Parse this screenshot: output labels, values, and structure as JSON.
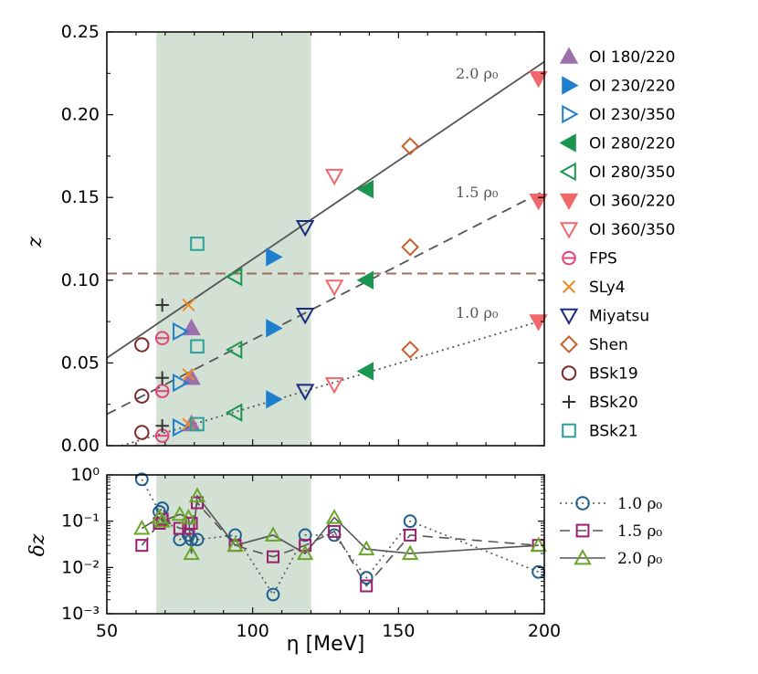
{
  "chart_data": [
    {
      "type": "scatter",
      "panel": "top",
      "xlabel": "",
      "ylabel": "z",
      "xlim": [
        50,
        200
      ],
      "ylim": [
        0,
        0.25
      ],
      "yticks": [
        "0.00",
        "0.05",
        "0.10",
        "0.15",
        "0.20",
        "0.25"
      ],
      "shaded_band": [
        67,
        120
      ],
      "hline": 0.104,
      "fit_lines": [
        {
          "name": "2.0 ρ0",
          "label": "2.0 ρ₀",
          "style": "solid",
          "points": [
            [
              50,
              0.053
            ],
            [
              200,
              0.232
            ]
          ]
        },
        {
          "name": "1.5 ρ0",
          "label": "1.5 ρ₀",
          "style": "dashed",
          "points": [
            [
              50,
              0.019
            ],
            [
              200,
              0.154
            ]
          ]
        },
        {
          "name": "1.0 ρ0",
          "label": "1.0 ρ₀",
          "style": "dotted",
          "points": [
            [
              55,
              0.0
            ],
            [
              200,
              0.076
            ]
          ]
        }
      ],
      "series": [
        {
          "name": "OI 180/220",
          "label": "OI 180/220",
          "marker": "triangle-up",
          "filled": true,
          "color": "#9c6fad",
          "points": [
            [
              79,
              0.071
            ],
            [
              79,
              0.041
            ],
            [
              79,
              0.013
            ]
          ]
        },
        {
          "name": "OI 230/220",
          "label": "OI 230/220",
          "marker": "triangle-right",
          "filled": true,
          "color": "#1f7fcf",
          "points": [
            [
              107,
              0.114
            ],
            [
              107,
              0.071
            ],
            [
              107,
              0.028
            ]
          ]
        },
        {
          "name": "OI 230/350",
          "label": "OI 230/350",
          "marker": "triangle-right",
          "filled": false,
          "color": "#1f7fcf",
          "points": [
            [
              75,
              0.069
            ],
            [
              75,
              0.038
            ],
            [
              75,
              0.011
            ]
          ]
        },
        {
          "name": "OI 280/220",
          "label": "OI 280/220",
          "marker": "triangle-left",
          "filled": true,
          "color": "#1a9650",
          "points": [
            [
              139,
              0.155
            ],
            [
              139,
              0.1
            ],
            [
              139,
              0.045
            ]
          ]
        },
        {
          "name": "OI 280/350",
          "label": "OI 280/350",
          "marker": "triangle-left",
          "filled": false,
          "color": "#1a9650",
          "points": [
            [
              94,
              0.102
            ],
            [
              94,
              0.058
            ],
            [
              94,
              0.02
            ]
          ]
        },
        {
          "name": "OI 360/220",
          "label": "OI 360/220",
          "marker": "triangle-down",
          "filled": true,
          "color": "#f0686c",
          "points": [
            [
              198,
              0.222
            ],
            [
              198,
              0.148
            ],
            [
              198,
              0.075
            ]
          ]
        },
        {
          "name": "OI 360/350",
          "label": "OI 360/350",
          "marker": "triangle-down",
          "filled": false,
          "color": "#f0686c",
          "points": [
            [
              128,
              0.163
            ],
            [
              128,
              0.096
            ],
            [
              128,
              0.037
            ]
          ]
        },
        {
          "name": "FPS",
          "label": "FPS",
          "marker": "circle-bar",
          "filled": false,
          "color": "#e0457b",
          "points": [
            [
              69,
              0.065
            ],
            [
              69,
              0.033
            ],
            [
              69,
              0.006
            ]
          ]
        },
        {
          "name": "SLy4",
          "label": "SLy4",
          "marker": "x",
          "filled": false,
          "color": "#f08a24",
          "points": [
            [
              78,
              0.085
            ],
            [
              78,
              0.043
            ],
            [
              78,
              0.013
            ]
          ]
        },
        {
          "name": "Miyatsu",
          "label": "Miyatsu",
          "marker": "triangle-down",
          "filled": false,
          "color": "#1a2a80",
          "points": [
            [
              118,
              0.132
            ],
            [
              118,
              0.079
            ],
            [
              118,
              0.033
            ]
          ]
        },
        {
          "name": "Shen",
          "label": "Shen",
          "marker": "diamond",
          "filled": false,
          "color": "#c8602c",
          "points": [
            [
              154,
              0.181
            ],
            [
              154,
              0.12
            ],
            [
              154,
              0.058
            ]
          ]
        },
        {
          "name": "BSk19",
          "label": "BSk19",
          "marker": "circle",
          "filled": false,
          "color": "#7a2a2a",
          "points": [
            [
              62,
              0.061
            ],
            [
              62,
              0.03
            ],
            [
              62,
              0.008
            ]
          ]
        },
        {
          "name": "BSk20",
          "label": "BSk20",
          "marker": "plus",
          "filled": false,
          "color": "#333333",
          "points": [
            [
              69,
              0.085
            ],
            [
              69,
              0.041
            ],
            [
              69,
              0.012
            ]
          ]
        },
        {
          "name": "BSk21",
          "label": "BSk21",
          "marker": "square",
          "filled": false,
          "color": "#2aa198",
          "points": [
            [
              81,
              0.122
            ],
            [
              81,
              0.06
            ],
            [
              81,
              0.013
            ]
          ]
        }
      ],
      "line_annotations": [
        "2.0 ρ₀",
        "1.5 ρ₀",
        "1.0 ρ₀"
      ]
    },
    {
      "type": "line",
      "panel": "bottom",
      "xlabel": "η [MeV]",
      "ylabel": "δz",
      "xlim": [
        50,
        200
      ],
      "ylim_log10": [
        -3,
        0
      ],
      "xticks": [
        "50",
        "100",
        "150",
        "200"
      ],
      "shaded_band": [
        67,
        120
      ],
      "x": [
        62,
        68,
        69,
        75,
        78,
        79,
        81,
        94,
        107,
        118,
        128,
        139,
        154,
        198
      ],
      "series": [
        {
          "name": "1.0 ρ0",
          "label": "1.0 ρ₀",
          "style": "dotted",
          "marker": "circle",
          "color": "#1f5f8f",
          "values": [
            0.8,
            0.16,
            0.19,
            0.04,
            0.05,
            0.04,
            0.04,
            0.05,
            0.0026,
            0.05,
            0.05,
            0.006,
            0.1,
            0.008
          ]
        },
        {
          "name": "1.5 ρ0",
          "label": "1.5 ρ₀",
          "style": "dashed",
          "marker": "square",
          "color": "#9c1f6e",
          "values": [
            0.03,
            0.09,
            0.11,
            0.07,
            0.07,
            0.09,
            0.25,
            0.03,
            0.017,
            0.03,
            0.06,
            0.004,
            0.05,
            0.03
          ]
        },
        {
          "name": "2.0 ρ0",
          "label": "2.0 ρ₀",
          "style": "solid",
          "marker": "triangle-up",
          "color": "#6aa62a",
          "values": [
            0.07,
            0.12,
            0.1,
            0.14,
            0.12,
            0.02,
            0.35,
            0.03,
            0.05,
            0.02,
            0.12,
            0.025,
            0.02,
            0.03
          ]
        }
      ]
    }
  ]
}
